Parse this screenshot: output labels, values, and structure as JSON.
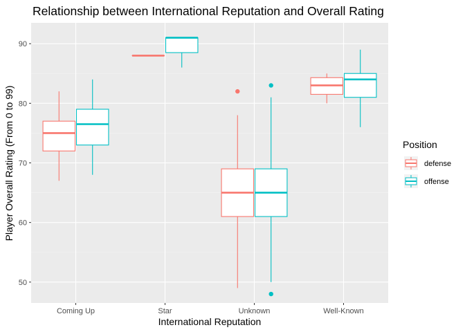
{
  "chart_data": {
    "type": "boxplot",
    "title": "Relationship between International Reputation and Overall Rating",
    "xlabel": "International Reputation",
    "ylabel": "Player Overall Rating (From 0 to 99)",
    "categories": [
      "Coming Up",
      "Star",
      "Unknown",
      "Well-Known"
    ],
    "ylim": [
      46.5,
      93.5
    ],
    "yticks": [
      50,
      60,
      70,
      80,
      90
    ],
    "grid": true,
    "legend": {
      "title": "Position",
      "placement": "right"
    },
    "series": [
      {
        "name": "defense",
        "color": "#F8766D",
        "boxes": [
          {
            "category": "Coming Up",
            "min": 67,
            "q1": 72,
            "median": 75,
            "q3": 77,
            "max": 82,
            "outliers": []
          },
          {
            "category": "Star",
            "min": 88,
            "q1": 88,
            "median": 88,
            "q3": 88,
            "max": 88,
            "outliers": []
          },
          {
            "category": "Unknown",
            "min": 49,
            "q1": 61,
            "median": 65,
            "q3": 69,
            "max": 78,
            "outliers": [
              82
            ]
          },
          {
            "category": "Well-Known",
            "min": 80,
            "q1": 81.5,
            "median": 83,
            "q3": 84.3,
            "max": 85,
            "outliers": []
          }
        ]
      },
      {
        "name": "offense",
        "color": "#00BFC4",
        "boxes": [
          {
            "category": "Coming Up",
            "min": 68,
            "q1": 73,
            "median": 76.5,
            "q3": 79,
            "max": 84,
            "outliers": []
          },
          {
            "category": "Star",
            "min": 86,
            "q1": 88.5,
            "median": 91,
            "q3": 91,
            "max": 91,
            "outliers": []
          },
          {
            "category": "Unknown",
            "min": 50,
            "q1": 61,
            "median": 65,
            "q3": 69,
            "max": 81,
            "outliers": [
              83,
              48
            ]
          },
          {
            "category": "Well-Known",
            "min": 76,
            "q1": 81,
            "median": 84,
            "q3": 85,
            "max": 89,
            "outliers": []
          }
        ]
      }
    ]
  }
}
